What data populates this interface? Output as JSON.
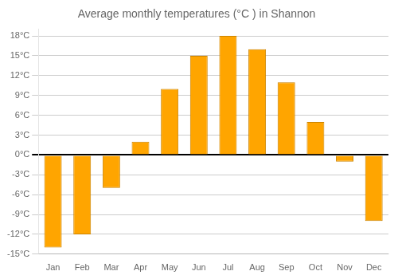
{
  "chart_data": {
    "type": "bar",
    "title": "Average monthly temperatures (°C ) in Shannon",
    "categories": [
      "Jan",
      "Feb",
      "Mar",
      "Apr",
      "May",
      "Jun",
      "Jul",
      "Aug",
      "Sep",
      "Oct",
      "Nov",
      "Dec"
    ],
    "values": [
      -14,
      -12,
      -5,
      2,
      10,
      15,
      18,
      16,
      11,
      5,
      -1,
      -10
    ],
    "color": "#FFA500",
    "ylim": [
      -15,
      19
    ],
    "yticks": [
      {
        "value": -15,
        "label": "-15°C"
      },
      {
        "value": -12,
        "label": "-12°C"
      },
      {
        "value": -9,
        "label": "-9°C"
      },
      {
        "value": -6,
        "label": "-6°C"
      },
      {
        "value": -3,
        "label": "-3°C"
      },
      {
        "value": 0,
        "label": "0°C"
      },
      {
        "value": 3,
        "label": "3°C"
      },
      {
        "value": 6,
        "label": "6°C"
      },
      {
        "value": 9,
        "label": "9°C"
      },
      {
        "value": 12,
        "label": "12°C"
      },
      {
        "value": 15,
        "label": "15°C"
      },
      {
        "value": 18,
        "label": "18°C"
      }
    ],
    "grid": true
  }
}
